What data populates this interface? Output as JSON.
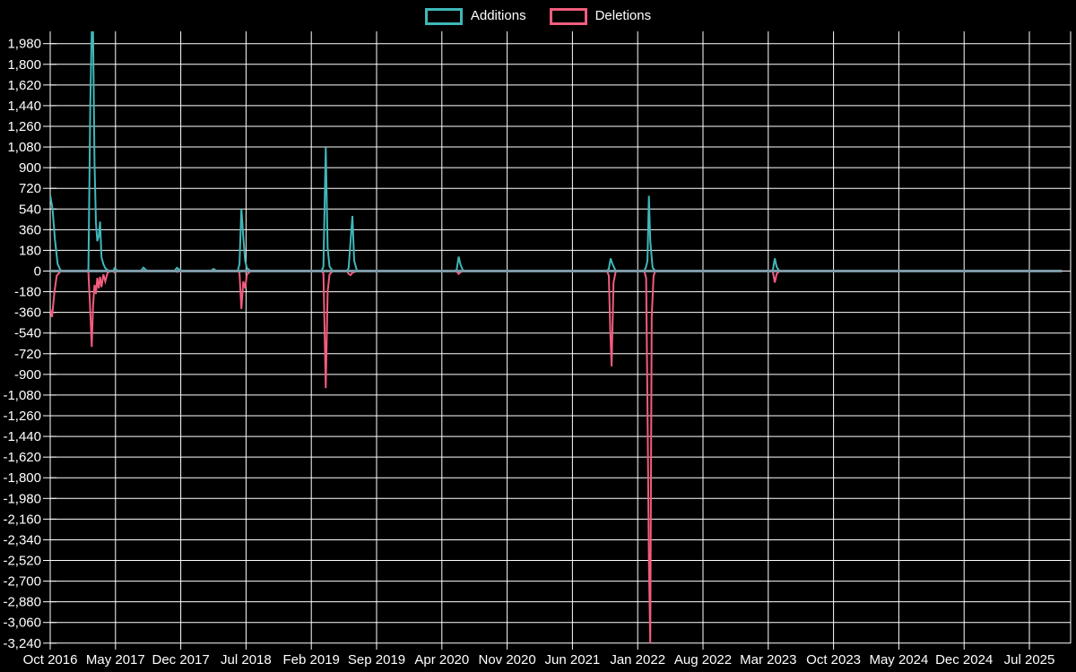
{
  "page": {
    "background": "#000000"
  },
  "legend": {
    "position": "top-center",
    "items": [
      {
        "label": "Additions",
        "color": "#3fb8ba"
      },
      {
        "label": "Deletions",
        "color": "#f25c7e"
      }
    ]
  },
  "chart_data": {
    "type": "line",
    "title": "",
    "xlabel": "",
    "ylabel": "",
    "grid": true,
    "legend_position": "top-center",
    "colors": {
      "background": "#000000",
      "grid": "#ffffff",
      "zero_line": "#7e99a6",
      "text": "#ffffff",
      "additions": "#3fb8ba",
      "deletions": "#f25c7e"
    },
    "x_axis": {
      "tick_labels": [
        "Oct 2016",
        "May 2017",
        "Dec 2017",
        "Jul 2018",
        "Feb 2019",
        "Sep 2019",
        "Apr 2020",
        "Nov 2020",
        "Jun 2021",
        "Jan 2022",
        "Aug 2022",
        "Mar 2023",
        "Oct 2023",
        "May 2024",
        "Dec 2024",
        "Jul 2025"
      ],
      "months_per_tick": 7,
      "data_start_month": 0,
      "data_end_month": 108.5
    },
    "y_axis": {
      "max": 1980,
      "min": -3240,
      "tick_step": 180
    },
    "series": [
      {
        "name": "Additions",
        "color": "#3fb8ba",
        "points_unit": "x = months since Oct 2016, y = lines added",
        "points": [
          [
            0,
            660
          ],
          [
            0.25,
            540
          ],
          [
            0.5,
            280
          ],
          [
            0.8,
            60
          ],
          [
            1.1,
            8
          ],
          [
            1.6,
            0
          ],
          [
            3.9,
            0
          ],
          [
            4.1,
            15
          ],
          [
            4.3,
            1450
          ],
          [
            4.45,
            2090
          ],
          [
            4.6,
            2090
          ],
          [
            4.75,
            950
          ],
          [
            4.9,
            420
          ],
          [
            5.05,
            260
          ],
          [
            5.2,
            300
          ],
          [
            5.35,
            430
          ],
          [
            5.5,
            120
          ],
          [
            5.7,
            60
          ],
          [
            5.9,
            25
          ],
          [
            6.15,
            8
          ],
          [
            6.5,
            0
          ],
          [
            6.75,
            0
          ],
          [
            6.9,
            25
          ],
          [
            7.15,
            8
          ],
          [
            7.4,
            0
          ],
          [
            9.7,
            0
          ],
          [
            10,
            30
          ],
          [
            10.3,
            8
          ],
          [
            10.6,
            0
          ],
          [
            13.3,
            0
          ],
          [
            13.6,
            28
          ],
          [
            13.9,
            10
          ],
          [
            14.2,
            0
          ],
          [
            17.2,
            0
          ],
          [
            17.5,
            18
          ],
          [
            17.8,
            5
          ],
          [
            18.1,
            0
          ],
          [
            20.1,
            0
          ],
          [
            20.3,
            60
          ],
          [
            20.5,
            540
          ],
          [
            20.7,
            300
          ],
          [
            20.9,
            90
          ],
          [
            21.1,
            25
          ],
          [
            21.5,
            0
          ],
          [
            29.1,
            0
          ],
          [
            29.3,
            40
          ],
          [
            29.55,
            1080
          ],
          [
            29.75,
            200
          ],
          [
            29.95,
            40
          ],
          [
            30.3,
            0
          ],
          [
            31.8,
            0
          ],
          [
            32,
            25
          ],
          [
            32.2,
            250
          ],
          [
            32.4,
            480
          ],
          [
            32.6,
            90
          ],
          [
            32.9,
            0
          ],
          [
            43.4,
            0
          ],
          [
            43.6,
            15
          ],
          [
            43.8,
            125
          ],
          [
            44,
            55
          ],
          [
            44.3,
            0
          ],
          [
            59.7,
            0
          ],
          [
            59.9,
            20
          ],
          [
            60.1,
            110
          ],
          [
            60.3,
            60
          ],
          [
            60.65,
            0
          ],
          [
            63.7,
            0
          ],
          [
            63.9,
            40
          ],
          [
            64.05,
            90
          ],
          [
            64.2,
            655
          ],
          [
            64.35,
            260
          ],
          [
            64.6,
            30
          ],
          [
            64.9,
            0
          ],
          [
            77.3,
            0
          ],
          [
            77.5,
            12
          ],
          [
            77.7,
            110
          ],
          [
            77.9,
            35
          ],
          [
            78.2,
            0
          ],
          [
            108.5,
            0
          ]
        ]
      },
      {
        "name": "Deletions",
        "color": "#f25c7e",
        "points_unit": "x = months since Oct 2016, y = lines deleted (negative)",
        "points": [
          [
            0,
            -330
          ],
          [
            0.2,
            -400
          ],
          [
            0.45,
            -180
          ],
          [
            0.7,
            -40
          ],
          [
            1.1,
            -5
          ],
          [
            1.6,
            0
          ],
          [
            3.9,
            0
          ],
          [
            4.1,
            -10
          ],
          [
            4.3,
            -350
          ],
          [
            4.45,
            -660
          ],
          [
            4.6,
            -300
          ],
          [
            4.75,
            -120
          ],
          [
            4.9,
            -200
          ],
          [
            5.05,
            -60
          ],
          [
            5.2,
            -150
          ],
          [
            5.35,
            -50
          ],
          [
            5.5,
            -140
          ],
          [
            5.7,
            -30
          ],
          [
            5.9,
            -90
          ],
          [
            6.15,
            -15
          ],
          [
            6.5,
            0
          ],
          [
            6.75,
            0
          ],
          [
            6.9,
            -12
          ],
          [
            7.2,
            0
          ],
          [
            9.7,
            0
          ],
          [
            10,
            -5
          ],
          [
            10.4,
            0
          ],
          [
            13.3,
            0
          ],
          [
            13.6,
            -8
          ],
          [
            14,
            0
          ],
          [
            17.2,
            0
          ],
          [
            17.5,
            -4
          ],
          [
            17.9,
            0
          ],
          [
            20.1,
            0
          ],
          [
            20.3,
            -15
          ],
          [
            20.5,
            -330
          ],
          [
            20.7,
            -90
          ],
          [
            20.9,
            -150
          ],
          [
            21.1,
            -30
          ],
          [
            21.5,
            0
          ],
          [
            29.1,
            0
          ],
          [
            29.3,
            -20
          ],
          [
            29.55,
            -1020
          ],
          [
            29.75,
            -180
          ],
          [
            29.95,
            -30
          ],
          [
            30.3,
            0
          ],
          [
            31.8,
            0
          ],
          [
            32,
            -25
          ],
          [
            32.2,
            -35
          ],
          [
            32.4,
            -15
          ],
          [
            32.9,
            0
          ],
          [
            43.4,
            0
          ],
          [
            43.6,
            -5
          ],
          [
            43.8,
            -25
          ],
          [
            44,
            -10
          ],
          [
            44.3,
            0
          ],
          [
            59.7,
            0
          ],
          [
            59.9,
            -40
          ],
          [
            60.05,
            -500
          ],
          [
            60.2,
            -830
          ],
          [
            60.4,
            -100
          ],
          [
            60.65,
            0
          ],
          [
            63.7,
            0
          ],
          [
            63.9,
            -60
          ],
          [
            64.05,
            -1170
          ],
          [
            64.2,
            -2540
          ],
          [
            64.35,
            -3240
          ],
          [
            64.5,
            -400
          ],
          [
            64.7,
            -40
          ],
          [
            64.9,
            0
          ],
          [
            77.3,
            0
          ],
          [
            77.5,
            -10
          ],
          [
            77.7,
            -100
          ],
          [
            77.9,
            -25
          ],
          [
            78.2,
            0
          ],
          [
            108.5,
            0
          ]
        ]
      }
    ]
  }
}
